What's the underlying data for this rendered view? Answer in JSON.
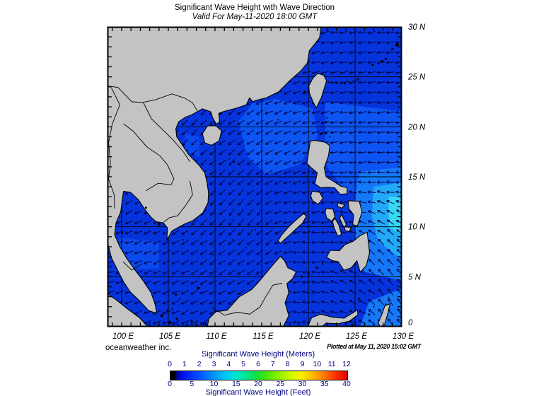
{
  "header": {
    "title": "Significant Wave Height with Wave Direction",
    "subtitle": "Valid For May-11-2020 18:00 GMT"
  },
  "footer": {
    "credit": "oceanweather inc.",
    "plotted_at": "Plotted at May 11, 2020 15:02 GMT"
  },
  "axes": {
    "lat_ticks": [
      {
        "lat": 30,
        "label": "30 N"
      },
      {
        "lat": 25,
        "label": "25 N"
      },
      {
        "lat": 20,
        "label": "20 N"
      },
      {
        "lat": 15,
        "label": "15 N"
      },
      {
        "lat": 10,
        "label": "10 N"
      },
      {
        "lat": 5,
        "label": "5 N"
      },
      {
        "lat": 0,
        "label": "0"
      }
    ],
    "lon_ticks": [
      {
        "lon": 100,
        "label": "100 E"
      },
      {
        "lon": 105,
        "label": "105 E"
      },
      {
        "lon": 110,
        "label": "110 E"
      },
      {
        "lon": 115,
        "label": "115 E"
      },
      {
        "lon": 120,
        "label": "120 E"
      },
      {
        "lon": 125,
        "label": "125 E"
      },
      {
        "lon": 130,
        "label": "130 E"
      }
    ]
  },
  "colorbar": {
    "title_meters": "Significant Wave Height (Meters)",
    "title_feet": "Significant Wave Height (Feet)",
    "meters_ticks": [
      0,
      1,
      2,
      3,
      4,
      5,
      6,
      7,
      8,
      9,
      10,
      11,
      12
    ],
    "feet_ticks": [
      0,
      5,
      10,
      15,
      20,
      25,
      30,
      35,
      40
    ],
    "text_color": "#000080",
    "gradient_stops": [
      [
        "0%",
        "#000000"
      ],
      [
        "2.5%",
        "#000000"
      ],
      [
        "4%",
        "#0000c0"
      ],
      [
        "8%",
        "#0018f0"
      ],
      [
        "16%",
        "#0050ff"
      ],
      [
        "24%",
        "#0090ff"
      ],
      [
        "31%",
        "#00c8f8"
      ],
      [
        "37%",
        "#00e8d0"
      ],
      [
        "43%",
        "#00e890"
      ],
      [
        "48%",
        "#10e048"
      ],
      [
        "53%",
        "#38e410"
      ],
      [
        "58%",
        "#70ec00"
      ],
      [
        "64%",
        "#a8f400"
      ],
      [
        "69%",
        "#d8f800"
      ],
      [
        "74%",
        "#f8f000"
      ],
      [
        "79%",
        "#ffc800"
      ],
      [
        "84%",
        "#ff9800"
      ],
      [
        "89%",
        "#ff6000"
      ],
      [
        "94%",
        "#ff2800"
      ],
      [
        "100%",
        "#dc0000"
      ]
    ]
  },
  "map": {
    "colors": {
      "ocean": "#0534dd",
      "land": "#c3c3c3",
      "arrows": "#000040",
      "graticule": "#000000",
      "frame": "#000000"
    },
    "wave_patches": [
      {
        "name": "ne-scs-2m",
        "color": "#0d55f2",
        "points": [
          [
            112.5,
            20.5
          ],
          [
            114,
            22.3
          ],
          [
            116.5,
            22.8
          ],
          [
            120.5,
            21.8
          ],
          [
            121,
            19
          ],
          [
            119,
            16.2
          ],
          [
            115.5,
            15.2
          ],
          [
            113.5,
            17
          ]
        ]
      },
      {
        "name": "philippine-sea-2m",
        "color": "#0d55f2",
        "points": [
          [
            121.8,
            22.5
          ],
          [
            130.4,
            21.5
          ],
          [
            130.4,
            13
          ],
          [
            124,
            13.5
          ],
          [
            122,
            16
          ],
          [
            121.8,
            19
          ]
        ]
      },
      {
        "name": "gulf-thailand-1.5m",
        "color": "#0b49ec",
        "points": [
          [
            99.8,
            8.9
          ],
          [
            104,
            8.5
          ],
          [
            104,
            5.8
          ],
          [
            100,
            5.8
          ],
          [
            99.3,
            7.5
          ]
        ]
      },
      {
        "name": "gulf-tonkin-1.5m",
        "color": "#0b49ec",
        "points": [
          [
            106.8,
            19.3
          ],
          [
            108.3,
            19.0
          ],
          [
            108.3,
            17.0
          ],
          [
            106.8,
            17.5
          ]
        ]
      },
      {
        "name": "molucca-2.5m",
        "color": "#1478f8",
        "points": [
          [
            125.5,
            -0.1
          ],
          [
            130.4,
            -0.1
          ],
          [
            130.4,
            4
          ],
          [
            126.5,
            2.5
          ]
        ]
      },
      {
        "name": "east-ph-2.5m",
        "color": "#1478f8",
        "points": [
          [
            125.5,
            15.5
          ],
          [
            130.4,
            16
          ],
          [
            130.4,
            4.5
          ],
          [
            126,
            5.5
          ],
          [
            125,
            9
          ],
          [
            124.8,
            12
          ]
        ]
      },
      {
        "name": "east-ph-3m",
        "color": "#22aaf8",
        "points": [
          [
            127,
            14
          ],
          [
            130.4,
            14.5
          ],
          [
            130.4,
            6.5
          ],
          [
            127.5,
            8.5
          ],
          [
            126.8,
            11
          ]
        ]
      },
      {
        "name": "east-ph-3.5m",
        "color": "#38d8f4",
        "points": [
          [
            128.6,
            13
          ],
          [
            130.4,
            13
          ],
          [
            130.4,
            9
          ],
          [
            128.6,
            10
          ]
        ]
      }
    ],
    "arrow_anchors": [
      [
        101.5,
        10.5,
        250
      ],
      [
        100,
        7,
        255
      ],
      [
        104,
        6.5,
        245
      ],
      [
        103,
        12.5,
        240
      ],
      [
        106.5,
        19,
        225
      ],
      [
        107.5,
        15,
        230
      ],
      [
        110,
        19,
        232
      ],
      [
        109,
        12,
        225
      ],
      [
        112,
        16,
        228
      ],
      [
        114,
        20,
        238
      ],
      [
        117.5,
        21.5,
        248
      ],
      [
        113,
        11,
        220
      ],
      [
        115,
        8,
        230
      ],
      [
        111,
        6,
        235
      ],
      [
        109,
        3,
        245
      ],
      [
        113,
        4,
        240
      ],
      [
        117,
        5.5,
        255
      ],
      [
        120,
        22.5,
        252
      ],
      [
        118,
        18,
        242
      ],
      [
        122,
        26,
        258
      ],
      [
        127,
        27,
        262
      ],
      [
        130,
        25,
        262
      ],
      [
        124,
        22,
        262
      ],
      [
        128,
        22,
        263
      ],
      [
        123,
        17,
        263
      ],
      [
        127,
        17,
        266
      ],
      [
        129,
        15,
        272
      ],
      [
        126,
        12,
        280
      ],
      [
        128.5,
        11,
        300
      ],
      [
        129.5,
        8,
        320
      ],
      [
        127,
        8,
        310
      ],
      [
        128,
        5,
        320
      ],
      [
        129.5,
        2.5,
        325
      ],
      [
        125,
        4,
        300
      ],
      [
        122.5,
        2,
        285
      ],
      [
        120,
        1,
        275
      ],
      [
        120,
        7,
        272
      ],
      [
        122,
        9,
        268
      ],
      [
        119,
        10.5,
        260
      ],
      [
        121,
        12.5,
        255
      ],
      [
        99,
        5,
        255
      ],
      [
        99,
        2,
        250
      ],
      [
        104,
        1.5,
        250
      ],
      [
        107,
        1.5,
        245
      ]
    ]
  }
}
